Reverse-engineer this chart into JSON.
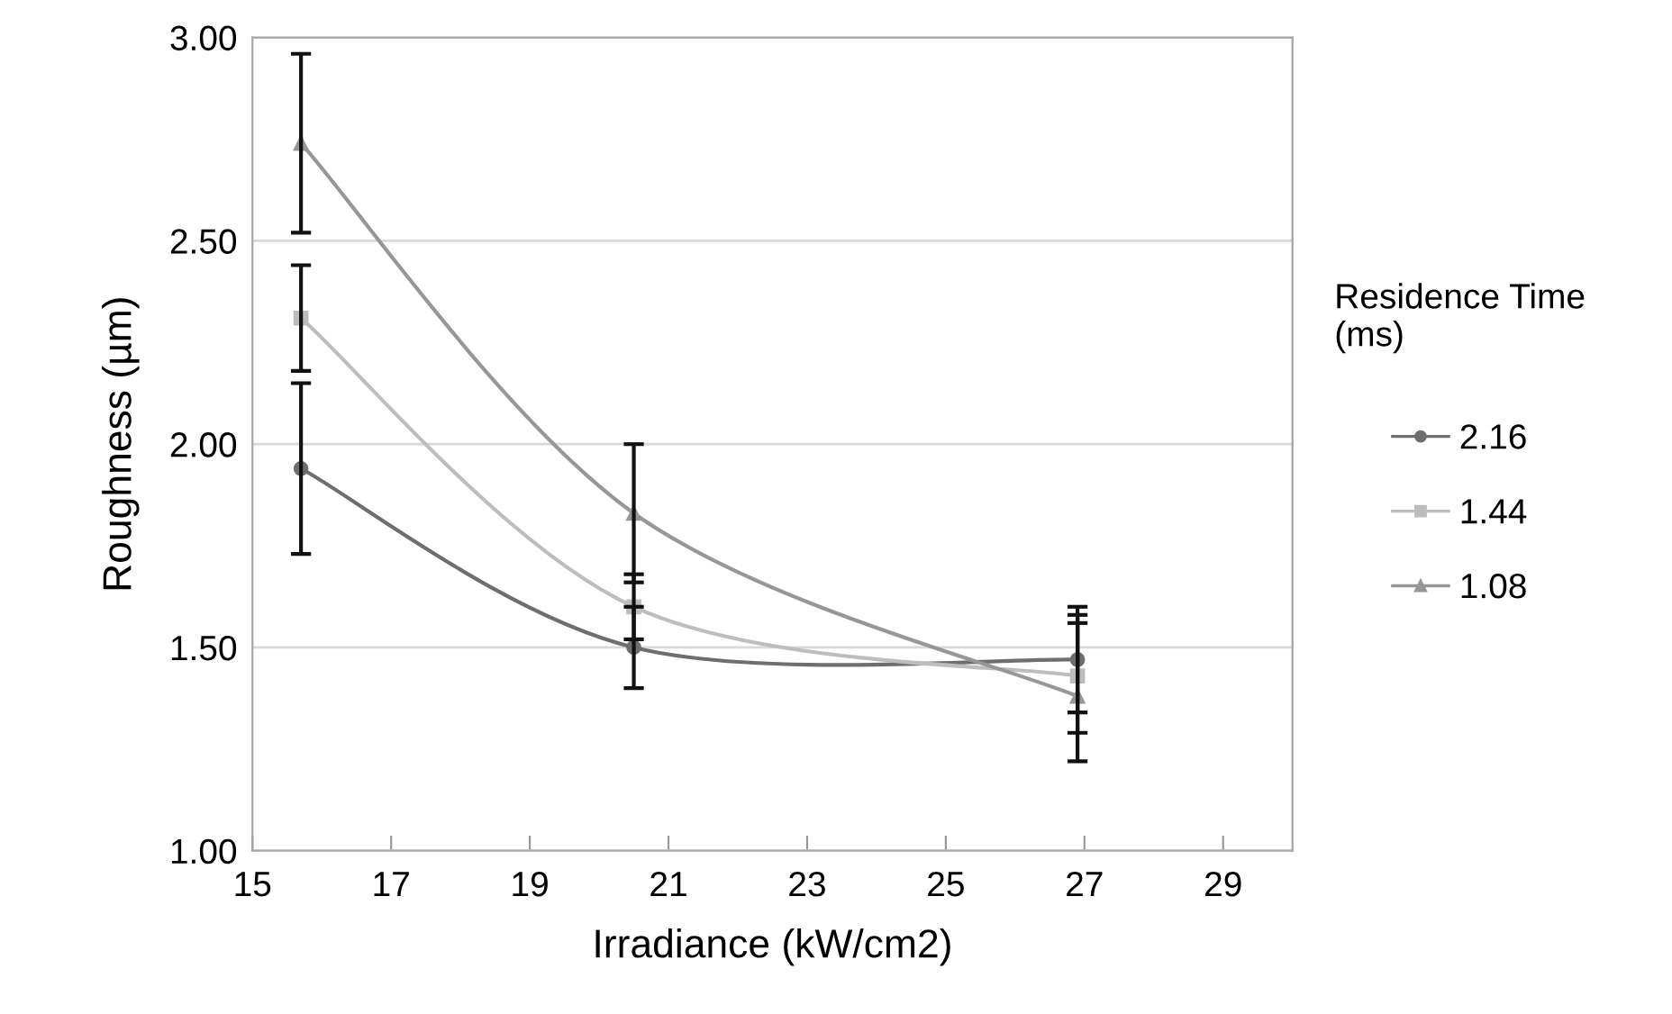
{
  "chart_data": {
    "type": "line",
    "xlabel": "Irradiance (kW/cm2)",
    "ylabel": "Roughness (µm)",
    "legend_title": "Residence Time\n(ms)",
    "x": [
      15.7,
      20.5,
      26.9
    ],
    "series": [
      {
        "name": "2.16",
        "color": "#6e6e6e",
        "marker": "circle",
        "values": [
          1.94,
          1.5,
          1.47
        ],
        "errors": [
          [
            1.73,
            2.15
          ],
          [
            1.4,
            1.6
          ],
          [
            1.34,
            1.6
          ]
        ]
      },
      {
        "name": "1.44",
        "color": "#bdbdbd",
        "marker": "square",
        "values": [
          2.31,
          1.6,
          1.43
        ],
        "errors": [
          [
            2.18,
            2.44
          ],
          [
            1.52,
            1.68
          ],
          [
            1.29,
            1.58
          ]
        ]
      },
      {
        "name": "1.08",
        "color": "#979797",
        "marker": "triangle",
        "values": [
          2.74,
          1.83,
          1.38
        ],
        "errors": [
          [
            2.52,
            2.96
          ],
          [
            1.66,
            2.0
          ],
          [
            1.22,
            1.56
          ]
        ]
      }
    ],
    "xlim": [
      15,
      30
    ],
    "xticks": [
      15,
      17,
      19,
      21,
      23,
      25,
      27,
      29
    ],
    "ylim": [
      1,
      3
    ],
    "yticks": [
      {
        "value": 1,
        "label": "1.00"
      },
      {
        "value": 1.5,
        "label": "1.50"
      },
      {
        "value": 2,
        "label": "2.00"
      },
      {
        "value": 2.5,
        "label": "2.50"
      },
      {
        "value": 3,
        "label": "3.00"
      }
    ],
    "grid": "y",
    "legend": "right"
  }
}
